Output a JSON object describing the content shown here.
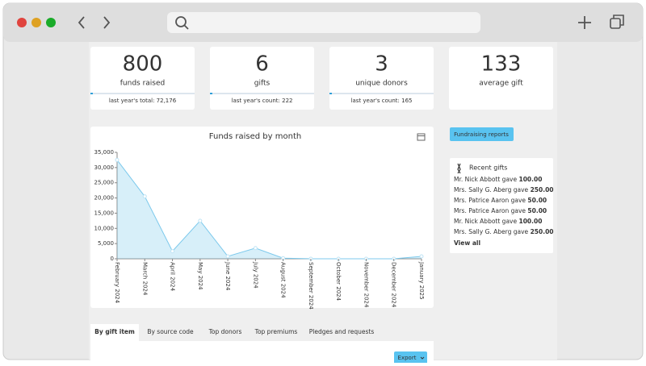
{
  "kpis": [
    {
      "value": "800",
      "label": "funds raised",
      "footer": "last year's total: 72,176"
    },
    {
      "value": "6",
      "label": "gifts",
      "footer": "last year's count: 222"
    },
    {
      "value": "3",
      "label": "unique donors",
      "footer": "last year's count: 165"
    },
    {
      "value": "133",
      "label": "average gift"
    }
  ],
  "chart_data": {
    "type": "area",
    "title": "Funds raised by month",
    "categories": [
      "February 2024",
      "March 2024",
      "April 2024",
      "May 2024",
      "June 2024",
      "July 2024",
      "August 2024",
      "September 2024",
      "October 2024",
      "November 2024",
      "December 2024",
      "January 2025"
    ],
    "values": [
      32500,
      20500,
      2500,
      12500,
      800,
      3500,
      200,
      0,
      0,
      0,
      0,
      800
    ],
    "color": "#7cc9ec",
    "ylim": [
      0,
      35000
    ],
    "yticks": [
      0,
      {
        "value": 5000,
        "label": "5,000"
      },
      {
        "value": 10000,
        "label": "10,000"
      },
      {
        "value": 15000,
        "label": "15,000"
      },
      {
        "value": 20000,
        "label": "20,000"
      },
      {
        "value": 25000,
        "label": "25,000"
      },
      {
        "value": 30000,
        "label": "30,000"
      },
      {
        "value": 35000,
        "label": "35,000"
      }
    ]
  },
  "reports_button": "Fundraising reports",
  "recent_gifts": {
    "title": "Recent gifts",
    "items": [
      {
        "text": "Mr. Nick Abbott gave",
        "amount": "100.00"
      },
      {
        "text": "Mrs. Sally G. Aberg gave",
        "amount": "250.00"
      },
      {
        "text": "Mrs. Patrice Aaron gave",
        "amount": "50.00"
      },
      {
        "text": "Mrs. Patrice Aaron gave",
        "amount": "50.00"
      },
      {
        "text": "Mr. Nick Abbott gave",
        "amount": "100.00"
      },
      {
        "text": "Mrs. Sally G. Aberg gave",
        "amount": "250.00"
      }
    ],
    "view_all": "View all"
  },
  "tabs": [
    "By gift item",
    "By source code",
    "Top donors",
    "Top premiums",
    "Pledges and requests"
  ],
  "export_button": "Export"
}
